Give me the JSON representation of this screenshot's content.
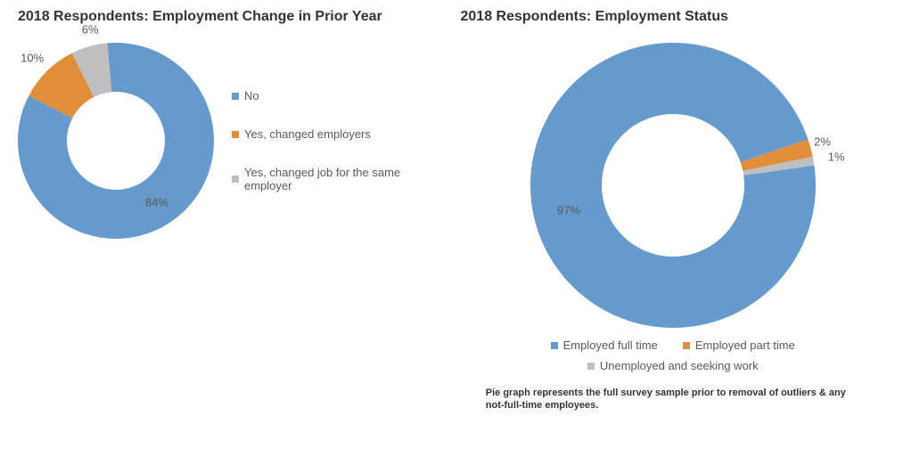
{
  "left_chart": {
    "type": "donut",
    "title": "2018 Respondents: Employment Change in Prior Year",
    "title_fontsize": 16,
    "title_color": "#333333",
    "outer_radius": 110,
    "inner_radius": 55,
    "background_color": "#ffffff",
    "start_angle_deg": -95,
    "slices": [
      {
        "label": "No",
        "value": 84,
        "pct_text": "84%",
        "color": "#6699cc"
      },
      {
        "label": "Yes, changed employers",
        "value": 10,
        "pct_text": "10%",
        "color": "#e08e3a"
      },
      {
        "label": "Yes, changed job for the same employer",
        "value": 6,
        "pct_text": "6%",
        "color": "#bfbfbf"
      }
    ],
    "label_fontsize": 13,
    "label_color": "#595959"
  },
  "right_chart": {
    "type": "donut",
    "title": "2018 Respondents: Employment Status",
    "title_fontsize": 16,
    "title_color": "#333333",
    "outer_radius": 160,
    "inner_radius": 80,
    "background_color": "#ffffff",
    "start_angle_deg": -8,
    "slices": [
      {
        "label": "Employed full time",
        "value": 97,
        "pct_text": "97%",
        "color": "#6699cc"
      },
      {
        "label": "Employed part time",
        "value": 2,
        "pct_text": "2%",
        "color": "#e08e3a"
      },
      {
        "label": "Unemployed and seeking work",
        "value": 1,
        "pct_text": "1%",
        "color": "#bfbfbf"
      }
    ],
    "label_fontsize": 13,
    "label_color": "#595959",
    "footnote": "Pie graph represents the full survey sample prior to removal of outliers & any not-full-time employees."
  }
}
